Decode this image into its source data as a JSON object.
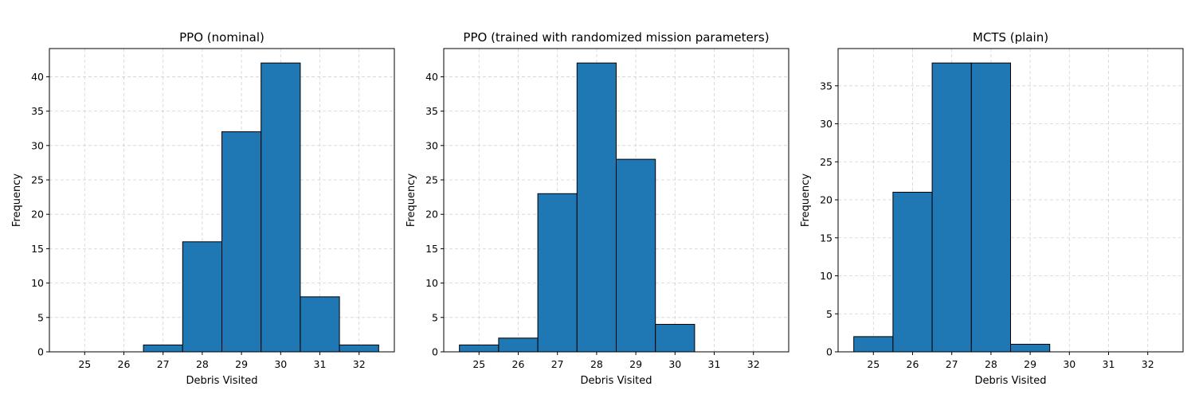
{
  "chart_data": [
    {
      "type": "bar",
      "title": "PPO (nominal)",
      "xlabel": "Debris Visited",
      "ylabel": "Frequency",
      "categories": [
        "25",
        "26",
        "27",
        "28",
        "29",
        "30",
        "31",
        "32"
      ],
      "bins": [
        25,
        26,
        27,
        28,
        29,
        30,
        31,
        32
      ],
      "values": [
        0,
        0,
        1,
        16,
        32,
        42,
        8,
        1
      ],
      "xlim": [
        24.1,
        32.9
      ],
      "ylim": [
        0,
        44.1
      ],
      "yticks": [
        0,
        5,
        10,
        15,
        20,
        25,
        30,
        35,
        40
      ],
      "grid": true,
      "color": "#1f77b4"
    },
    {
      "type": "bar",
      "title": "PPO (trained with randomized mission parameters)",
      "xlabel": "Debris Visited",
      "ylabel": "Frequency",
      "categories": [
        "25",
        "26",
        "27",
        "28",
        "29",
        "30",
        "31",
        "32"
      ],
      "bins": [
        25,
        26,
        27,
        28,
        29,
        30,
        31,
        32
      ],
      "values": [
        1,
        2,
        23,
        42,
        28,
        4,
        0,
        0
      ],
      "xlim": [
        24.1,
        32.9
      ],
      "ylim": [
        0,
        44.1
      ],
      "yticks": [
        0,
        5,
        10,
        15,
        20,
        25,
        30,
        35,
        40
      ],
      "grid": true,
      "color": "#1f77b4"
    },
    {
      "type": "bar",
      "title": "MCTS (plain)",
      "xlabel": "Debris Visited",
      "ylabel": "Frequency",
      "categories": [
        "25",
        "26",
        "27",
        "28",
        "29",
        "30",
        "31",
        "32"
      ],
      "bins": [
        25,
        26,
        27,
        28,
        29,
        30,
        31,
        32
      ],
      "values": [
        2,
        21,
        38,
        38,
        1,
        0,
        0,
        0
      ],
      "xlim": [
        24.1,
        32.9
      ],
      "ylim": [
        0,
        39.9
      ],
      "yticks": [
        0,
        5,
        10,
        15,
        20,
        25,
        30,
        35
      ],
      "grid": true,
      "color": "#1f77b4"
    }
  ]
}
